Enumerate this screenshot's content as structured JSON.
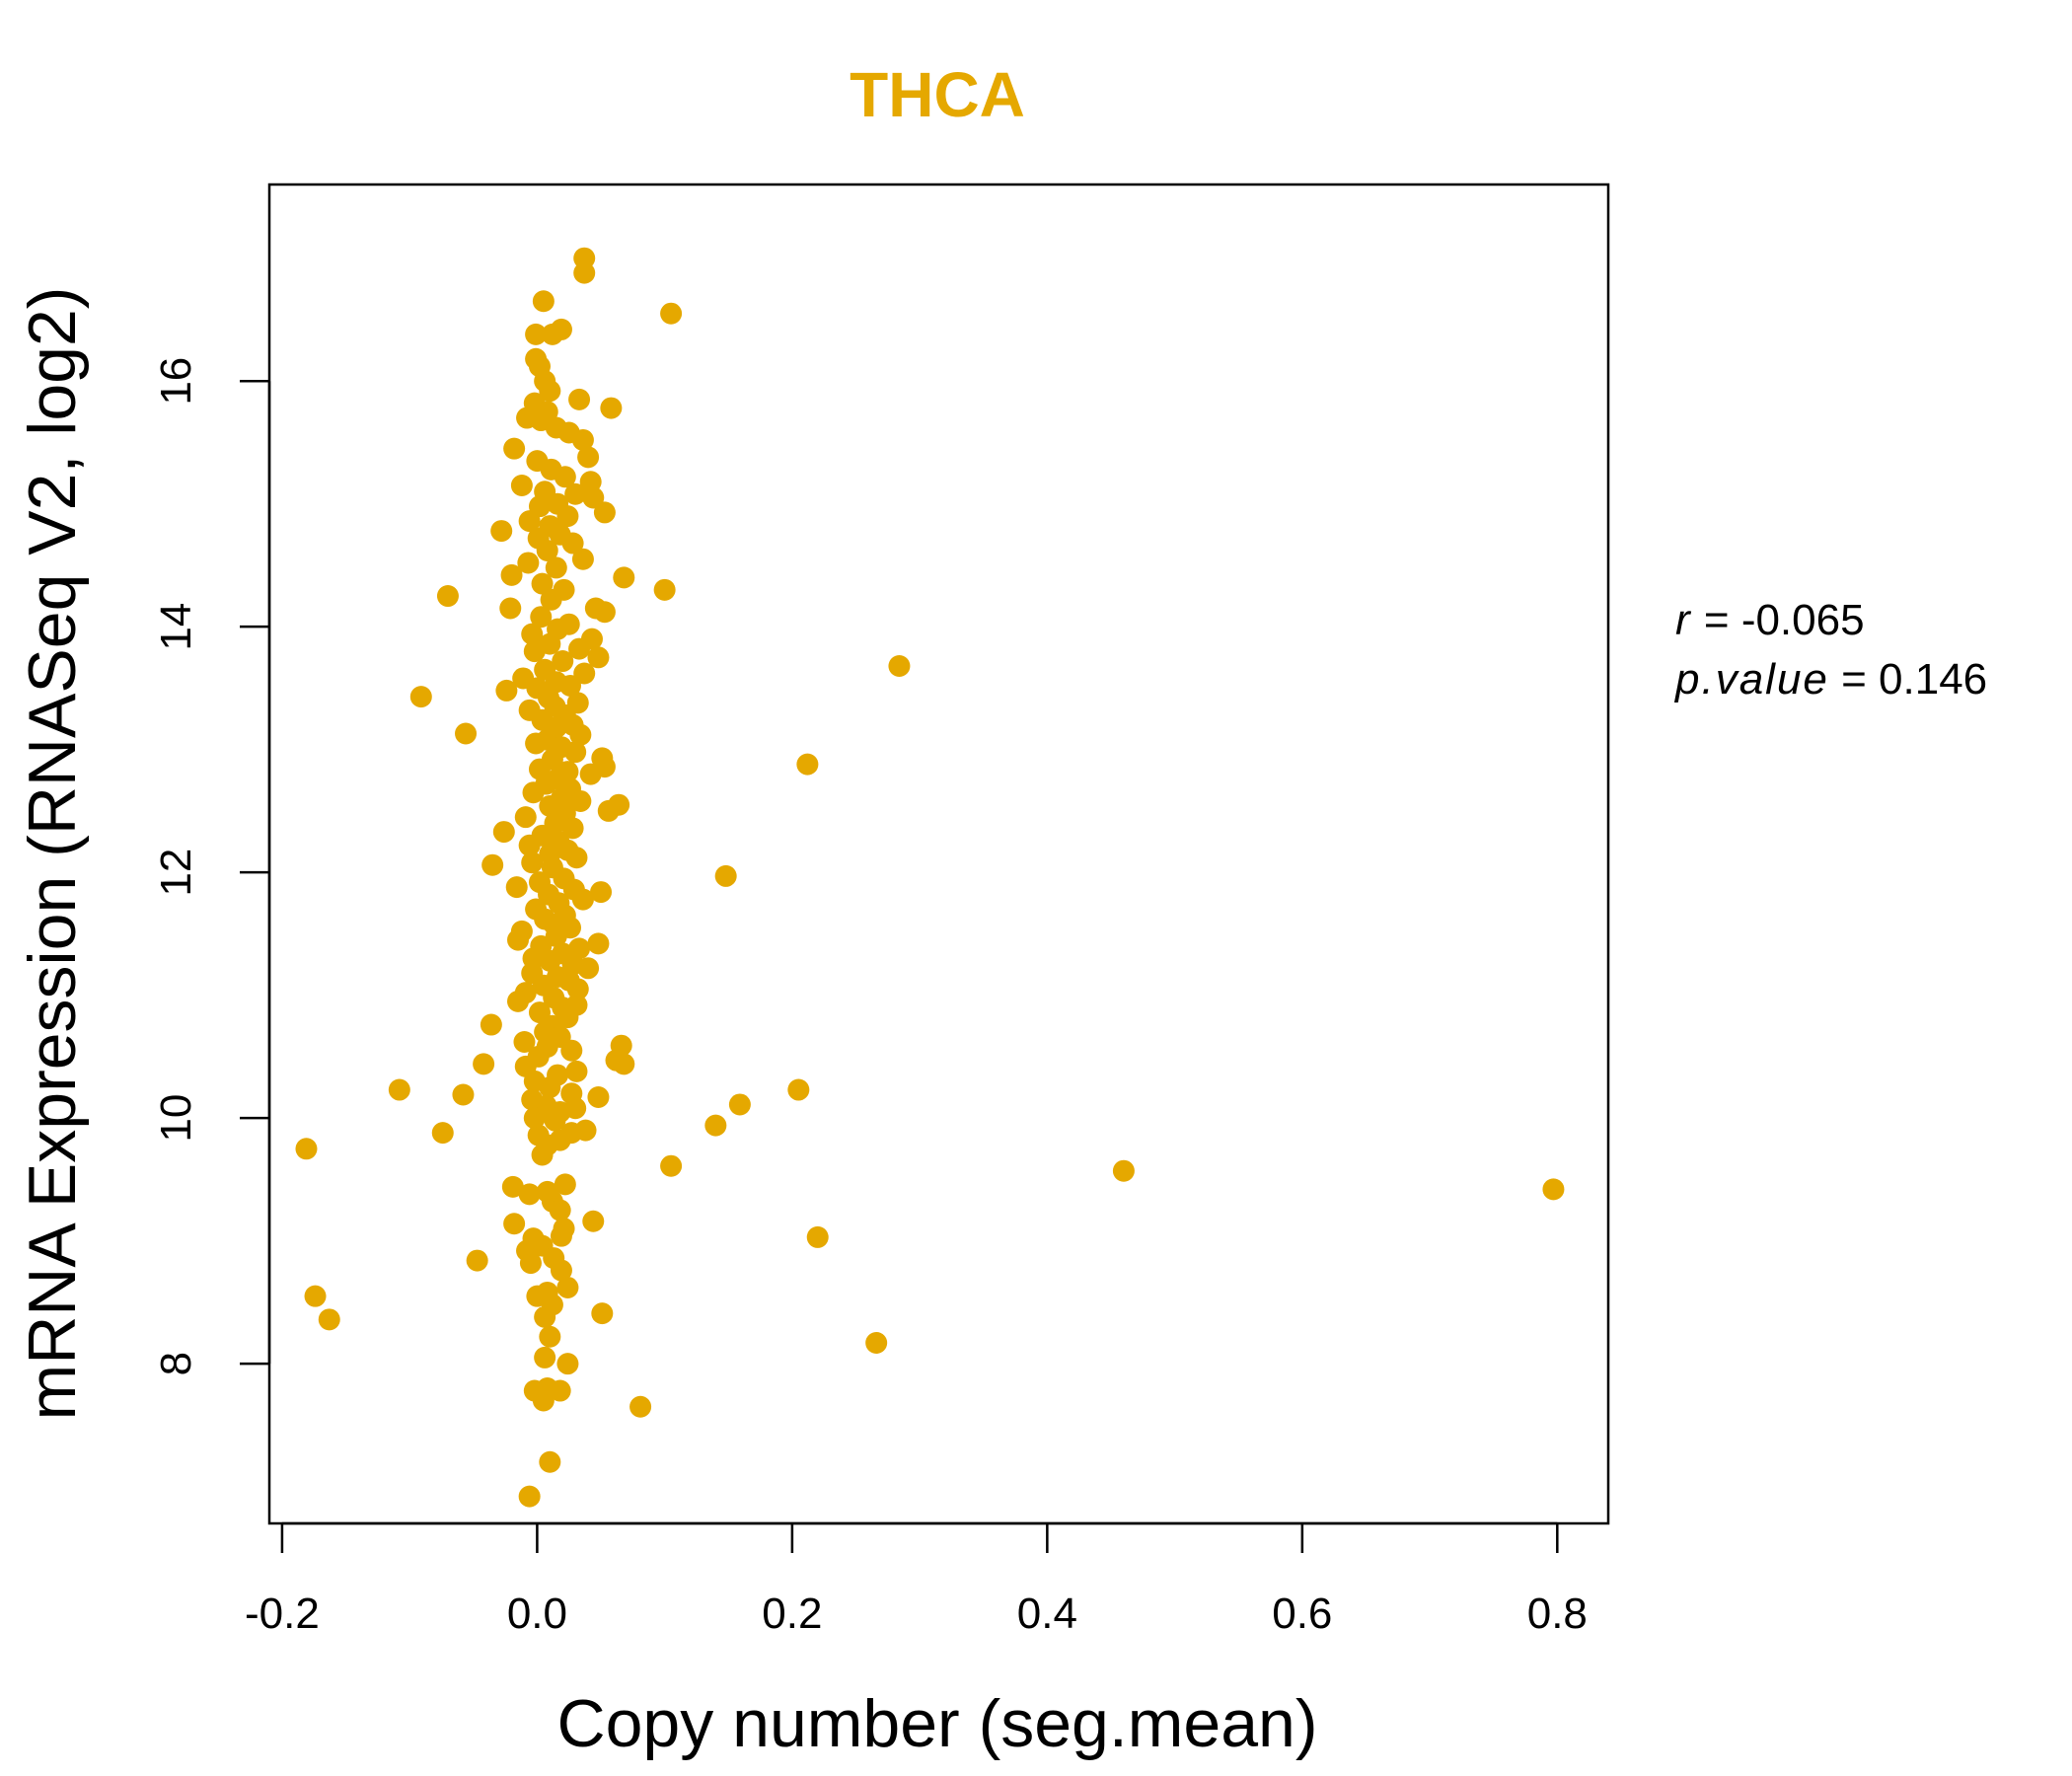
{
  "chart_data": {
    "type": "scatter",
    "title": "THCA",
    "xlabel": "Copy number (seg.mean)",
    "ylabel": "mRNA Expression (RNASeq V2, log2)",
    "colors": {
      "point": "#E5A800",
      "title": "#E5A800",
      "axis": "#000000"
    },
    "xlim": [
      -0.21,
      0.84
    ],
    "ylim": [
      6.7,
      17.6
    ],
    "x_ticks": [
      -0.2,
      0.0,
      0.2,
      0.4,
      0.6,
      0.8
    ],
    "x_tick_labels": [
      "-0.2",
      "0.0",
      "0.2",
      "0.4",
      "0.6",
      "0.8"
    ],
    "y_ticks": [
      8,
      10,
      12,
      14,
      16
    ],
    "y_tick_labels": [
      "8",
      "10",
      "12",
      "14",
      "16"
    ],
    "grid": false,
    "legend": "none",
    "stats": {
      "r_label": "r",
      "r_value": "-0.065",
      "p_label": "p.value",
      "p_value": "0.146"
    },
    "points": [
      [
        0.037,
        17.0
      ],
      [
        0.037,
        16.88
      ],
      [
        0.005,
        16.65
      ],
      [
        0.105,
        16.55
      ],
      [
        0.019,
        16.42
      ],
      [
        0.012,
        16.38
      ],
      [
        -0.001,
        16.38
      ],
      [
        -0.001,
        16.18
      ],
      [
        0.002,
        16.12
      ],
      [
        0.006,
        16.0
      ],
      [
        0.01,
        15.92
      ],
      [
        0.033,
        15.85
      ],
      [
        0.058,
        15.78
      ],
      [
        -0.002,
        15.82
      ],
      [
        0.008,
        15.75
      ],
      [
        -0.008,
        15.7
      ],
      [
        0.003,
        15.68
      ],
      [
        0.015,
        15.62
      ],
      [
        0.025,
        15.58
      ],
      [
        0.036,
        15.52
      ],
      [
        -0.018,
        15.45
      ],
      [
        0.04,
        15.38
      ],
      [
        0.0,
        15.35
      ],
      [
        0.011,
        15.28
      ],
      [
        0.022,
        15.22
      ],
      [
        0.042,
        15.18
      ],
      [
        -0.012,
        15.15
      ],
      [
        0.006,
        15.1
      ],
      [
        0.03,
        15.08
      ],
      [
        0.044,
        15.05
      ],
      [
        0.016,
        15.0
      ],
      [
        0.002,
        14.98
      ],
      [
        0.053,
        14.93
      ],
      [
        0.024,
        14.9
      ],
      [
        -0.006,
        14.86
      ],
      [
        0.01,
        14.82
      ],
      [
        -0.028,
        14.78
      ],
      [
        0.018,
        14.75
      ],
      [
        0.001,
        14.72
      ],
      [
        0.028,
        14.68
      ],
      [
        0.008,
        14.62
      ],
      [
        0.036,
        14.55
      ],
      [
        -0.007,
        14.52
      ],
      [
        0.015,
        14.48
      ],
      [
        -0.02,
        14.42
      ],
      [
        0.068,
        14.4
      ],
      [
        0.004,
        14.35
      ],
      [
        0.021,
        14.3
      ],
      [
        0.1,
        14.3
      ],
      [
        -0.07,
        14.25
      ],
      [
        0.011,
        14.22
      ],
      [
        -0.021,
        14.15
      ],
      [
        0.046,
        14.15
      ],
      [
        0.053,
        14.12
      ],
      [
        0.003,
        14.08
      ],
      [
        0.025,
        14.02
      ],
      [
        0.016,
        13.98
      ],
      [
        -0.004,
        13.94
      ],
      [
        0.043,
        13.9
      ],
      [
        0.01,
        13.86
      ],
      [
        0.033,
        13.82
      ],
      [
        -0.002,
        13.8
      ],
      [
        0.048,
        13.75
      ],
      [
        0.02,
        13.72
      ],
      [
        0.284,
        13.68
      ],
      [
        0.006,
        13.65
      ],
      [
        0.037,
        13.62
      ],
      [
        -0.011,
        13.58
      ],
      [
        0.015,
        13.55
      ],
      [
        0.026,
        13.52
      ],
      [
        0.0,
        13.5
      ],
      [
        -0.024,
        13.48
      ],
      [
        -0.091,
        13.43
      ],
      [
        0.009,
        13.42
      ],
      [
        0.032,
        13.38
      ],
      [
        0.014,
        13.35
      ],
      [
        -0.006,
        13.32
      ],
      [
        0.022,
        13.28
      ],
      [
        0.004,
        13.24
      ],
      [
        0.028,
        13.2
      ],
      [
        0.015,
        13.18
      ],
      [
        -0.056,
        13.13
      ],
      [
        0.034,
        13.12
      ],
      [
        0.008,
        13.08
      ],
      [
        -0.001,
        13.05
      ],
      [
        0.019,
        13.02
      ],
      [
        0.03,
        12.98
      ],
      [
        0.051,
        12.93
      ],
      [
        0.012,
        12.92
      ],
      [
        0.212,
        12.88
      ],
      [
        0.053,
        12.86
      ],
      [
        0.002,
        12.84
      ],
      [
        0.024,
        12.82
      ],
      [
        0.042,
        12.8
      ],
      [
        0.016,
        12.76
      ],
      [
        0.007,
        12.72
      ],
      [
        0.026,
        12.68
      ],
      [
        -0.003,
        12.65
      ],
      [
        0.019,
        12.6
      ],
      [
        0.034,
        12.58
      ],
      [
        0.064,
        12.55
      ],
      [
        0.01,
        12.54
      ],
      [
        0.056,
        12.5
      ],
      [
        0.022,
        12.48
      ],
      [
        -0.009,
        12.45
      ],
      [
        0.014,
        12.4
      ],
      [
        0.028,
        12.36
      ],
      [
        -0.026,
        12.33
      ],
      [
        0.004,
        12.3
      ],
      [
        0.017,
        12.25
      ],
      [
        -0.006,
        12.22
      ],
      [
        0.024,
        12.18
      ],
      [
        0.01,
        12.15
      ],
      [
        0.031,
        12.12
      ],
      [
        -0.004,
        12.08
      ],
      [
        -0.035,
        12.06
      ],
      [
        0.012,
        12.04
      ],
      [
        0.148,
        11.97
      ],
      [
        0.021,
        11.95
      ],
      [
        0.002,
        11.92
      ],
      [
        -0.016,
        11.88
      ],
      [
        0.029,
        11.86
      ],
      [
        0.05,
        11.84
      ],
      [
        0.009,
        11.82
      ],
      [
        0.036,
        11.78
      ],
      [
        0.017,
        11.75
      ],
      [
        -0.001,
        11.7
      ],
      [
        0.022,
        11.65
      ],
      [
        0.006,
        11.62
      ],
      [
        0.013,
        11.58
      ],
      [
        0.026,
        11.55
      ],
      [
        -0.012,
        11.52
      ],
      [
        0.015,
        11.48
      ],
      [
        -0.015,
        11.45
      ],
      [
        0.048,
        11.42
      ],
      [
        0.003,
        11.4
      ],
      [
        0.033,
        11.38
      ],
      [
        0.02,
        11.34
      ],
      [
        -0.003,
        11.3
      ],
      [
        0.01,
        11.28
      ],
      [
        0.028,
        11.25
      ],
      [
        0.04,
        11.22
      ],
      [
        -0.004,
        11.18
      ],
      [
        0.016,
        11.15
      ],
      [
        0.025,
        11.12
      ],
      [
        0.005,
        11.08
      ],
      [
        0.032,
        11.05
      ],
      [
        -0.009,
        11.02
      ],
      [
        0.013,
        10.98
      ],
      [
        -0.015,
        10.95
      ],
      [
        0.031,
        10.92
      ],
      [
        0.02,
        10.9
      ],
      [
        0.002,
        10.86
      ],
      [
        0.024,
        10.82
      ],
      [
        -0.036,
        10.76
      ],
      [
        0.012,
        10.75
      ],
      [
        0.006,
        10.7
      ],
      [
        0.018,
        10.66
      ],
      [
        -0.01,
        10.62
      ],
      [
        0.066,
        10.59
      ],
      [
        0.008,
        10.58
      ],
      [
        0.027,
        10.55
      ],
      [
        0.001,
        10.5
      ],
      [
        0.062,
        10.47
      ],
      [
        0.068,
        10.44
      ],
      [
        -0.042,
        10.44
      ],
      [
        -0.009,
        10.42
      ],
      [
        0.031,
        10.38
      ],
      [
        0.016,
        10.35
      ],
      [
        -0.002,
        10.3
      ],
      [
        -0.108,
        10.23
      ],
      [
        0.01,
        10.25
      ],
      [
        0.205,
        10.23
      ],
      [
        0.027,
        10.2
      ],
      [
        -0.058,
        10.19
      ],
      [
        0.048,
        10.17
      ],
      [
        -0.004,
        10.15
      ],
      [
        0.159,
        10.11
      ],
      [
        0.007,
        10.1
      ],
      [
        0.03,
        10.08
      ],
      [
        0.018,
        10.05
      ],
      [
        -0.002,
        10.0
      ],
      [
        0.014,
        9.98
      ],
      [
        0.14,
        9.94
      ],
      [
        0.038,
        9.9
      ],
      [
        0.027,
        9.88
      ],
      [
        -0.074,
        9.88
      ],
      [
        0.001,
        9.86
      ],
      [
        0.018,
        9.82
      ],
      [
        0.008,
        9.78
      ],
      [
        -0.181,
        9.75
      ],
      [
        0.004,
        9.7
      ],
      [
        0.105,
        9.61
      ],
      [
        0.46,
        9.57
      ],
      [
        0.022,
        9.46
      ],
      [
        0.797,
        9.42
      ],
      [
        -0.019,
        9.44
      ],
      [
        -0.006,
        9.38
      ],
      [
        0.008,
        9.4
      ],
      [
        0.012,
        9.32
      ],
      [
        0.018,
        9.25
      ],
      [
        0.044,
        9.16
      ],
      [
        -0.018,
        9.14
      ],
      [
        0.021,
        9.1
      ],
      [
        0.22,
        9.03
      ],
      [
        0.019,
        9.04
      ],
      [
        -0.003,
        9.02
      ],
      [
        0.004,
        8.96
      ],
      [
        -0.008,
        8.92
      ],
      [
        0.013,
        8.86
      ],
      [
        -0.047,
        8.84
      ],
      [
        -0.005,
        8.82
      ],
      [
        0.019,
        8.76
      ],
      [
        0.024,
        8.62
      ],
      [
        0.008,
        8.58
      ],
      [
        0.0,
        8.55
      ],
      [
        -0.174,
        8.55
      ],
      [
        0.012,
        8.48
      ],
      [
        0.051,
        8.41
      ],
      [
        0.006,
        8.38
      ],
      [
        -0.163,
        8.36
      ],
      [
        0.01,
        8.22
      ],
      [
        0.266,
        8.17
      ],
      [
        0.006,
        8.05
      ],
      [
        0.024,
        8.0
      ],
      [
        -0.002,
        7.78
      ],
      [
        0.008,
        7.8
      ],
      [
        0.018,
        7.78
      ],
      [
        0.005,
        7.7
      ],
      [
        0.081,
        7.65
      ],
      [
        0.01,
        7.2
      ],
      [
        -0.006,
        6.92
      ]
    ]
  }
}
